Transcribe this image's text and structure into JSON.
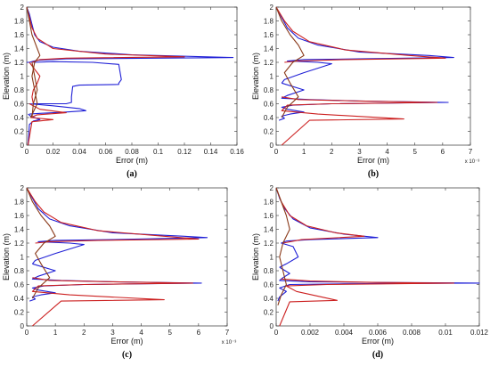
{
  "chart_data": [
    {
      "type": "line",
      "panel_label": "(a)",
      "xlabel": "Error (m)",
      "ylabel": "Elevation (m)",
      "xlim": [
        0,
        0.16
      ],
      "ylim": [
        0,
        2
      ],
      "xticks": [
        "0",
        "0.02",
        "0.04",
        "0.06",
        "0.08",
        "0.1",
        "0.12",
        "0.14",
        "0.16"
      ],
      "yticks": [
        "0",
        "0.2",
        "0.4",
        "0.6",
        "0.8",
        "1",
        "1.2",
        "1.4",
        "1.6",
        "1.8",
        "2"
      ],
      "exponent_label": "",
      "series": [
        {
          "color": "#1f1fd6",
          "x": [
            0,
            0.002,
            0.004,
            0.006,
            0.01,
            0.02,
            0.04,
            0.08,
            0.157,
            0.03,
            0.008,
            0.004,
            0.002,
            0
          ],
          "y": [
            2,
            1.9,
            1.75,
            1.6,
            1.5,
            1.42,
            1.36,
            1.31,
            1.27,
            1.25,
            1.23,
            1.21,
            1.2,
            1.2
          ]
        },
        {
          "color": "#1f1fd6",
          "x": [
            0.005,
            0.02,
            0.05,
            0.07,
            0.072,
            0.07,
            0.07,
            0.04,
            0.035,
            0.034,
            0.034,
            0.03,
            0.005
          ],
          "y": [
            1.2,
            1.21,
            1.2,
            1.17,
            0.95,
            0.9,
            0.88,
            0.87,
            0.85,
            0.7,
            0.62,
            0.6,
            0.6
          ]
        },
        {
          "color": "#1f1fd6",
          "x": [
            0.002,
            0.02,
            0.04,
            0.045,
            0.03,
            0.01,
            0.002
          ],
          "y": [
            0.6,
            0.57,
            0.53,
            0.5,
            0.48,
            0.46,
            0.45
          ]
        },
        {
          "color": "#1f1fd6",
          "x": [
            0.001,
            0.003,
            0.006,
            0.01,
            0.005,
            0.002,
            0.001
          ],
          "y": [
            0.45,
            0.42,
            0.4,
            0.37,
            0.35,
            0.3,
            0
          ]
        },
        {
          "color": "#cc2020",
          "x": [
            0,
            0.002,
            0.004,
            0.008,
            0.02,
            0.06,
            0.12,
            0.03,
            0.01,
            0.004
          ],
          "y": [
            2,
            1.85,
            1.7,
            1.55,
            1.4,
            1.32,
            1.28,
            1.26,
            1.24,
            1.2
          ]
        },
        {
          "color": "#cc2020",
          "x": [
            0.002,
            0.006,
            0.01,
            0.008,
            0.005,
            0.004,
            0.005
          ],
          "y": [
            1.2,
            1.1,
            1,
            0.9,
            0.8,
            0.7,
            0.6
          ]
        },
        {
          "color": "#cc2020",
          "x": [
            0.002,
            0.01,
            0.03,
            0.008,
            0.003,
            0.02,
            0.004,
            0.001
          ],
          "y": [
            0.6,
            0.52,
            0.47,
            0.44,
            0.4,
            0.37,
            0.34,
            0
          ]
        },
        {
          "color": "#8a3a1a",
          "x": [
            0,
            0.002,
            0.004,
            0.006,
            0.008,
            0.01,
            0.006,
            0.004,
            0.006,
            0.008,
            0.003
          ],
          "y": [
            2,
            1.8,
            1.6,
            1.5,
            1.4,
            1.3,
            1.2,
            1.0,
            0.8,
            0.6,
            0.4
          ]
        },
        {
          "color": "#8a3a1a",
          "x": [
            0.004,
            0.006,
            0.008,
            0.005,
            0.004
          ],
          "y": [
            1.2,
            1.0,
            0.8,
            0.6,
            0.4
          ]
        }
      ]
    },
    {
      "type": "line",
      "panel_label": "(b)",
      "xlabel": "Error (m)",
      "ylabel": "Elevation (m)",
      "xlim": [
        0,
        7
      ],
      "ylim": [
        0,
        2
      ],
      "xticks": [
        "0",
        "1",
        "2",
        "3",
        "4",
        "5",
        "6",
        "7"
      ],
      "yticks": [
        "0",
        "0.2",
        "0.4",
        "0.6",
        "0.8",
        "1",
        "1.2",
        "1.4",
        "1.6",
        "1.8",
        "2"
      ],
      "exponent_label": "x 10⁻³",
      "series": [
        {
          "color": "#1f1fd6",
          "x": [
            0,
            0.2,
            0.4,
            0.8,
            1.5,
            3,
            5.5,
            6.4,
            3,
            1,
            0.4,
            1.5,
            2,
            1,
            0.3,
            0.2
          ],
          "y": [
            2,
            1.85,
            1.7,
            1.55,
            1.45,
            1.35,
            1.3,
            1.27,
            1.25,
            1.24,
            1.22,
            1.2,
            1.18,
            1.05,
            0.95,
            0.9
          ]
        },
        {
          "color": "#1f1fd6",
          "x": [
            0.2,
            1,
            0.4,
            0.2,
            1.2,
            3,
            6.2,
            2,
            0.6,
            0.2,
            0.4,
            1,
            0.5,
            0.2,
            0.3,
            0.1
          ],
          "y": [
            0.9,
            0.8,
            0.72,
            0.68,
            0.66,
            0.64,
            0.62,
            0.6,
            0.58,
            0.55,
            0.52,
            0.48,
            0.45,
            0.42,
            0.39,
            0.36
          ]
        },
        {
          "color": "#cc2020",
          "x": [
            0,
            0.3,
            0.6,
            1.2,
            2.5,
            4.8,
            6.1,
            2.5,
            0.8,
            0.3
          ],
          "y": [
            2,
            1.8,
            1.65,
            1.5,
            1.38,
            1.3,
            1.26,
            1.24,
            1.22,
            1.2
          ]
        },
        {
          "color": "#cc2020",
          "x": [
            0.2,
            0.8,
            3,
            5.8,
            2,
            0.4,
            0.2,
            1.5,
            4.6,
            1.2,
            0.2
          ],
          "y": [
            0.7,
            0.66,
            0.64,
            0.62,
            0.6,
            0.58,
            0.5,
            0.45,
            0.38,
            0.36,
            0
          ]
        },
        {
          "color": "#8a3a1a",
          "x": [
            0,
            0.2,
            0.5,
            0.8,
            1,
            0.6,
            0.3,
            0.5,
            0.8,
            0.4,
            0.2
          ],
          "y": [
            2,
            1.8,
            1.6,
            1.45,
            1.3,
            1.2,
            1.05,
            0.9,
            0.7,
            0.55,
            0.4
          ]
        }
      ]
    },
    {
      "type": "line",
      "panel_label": "(c)",
      "xlabel": "Error (m)",
      "ylabel": "Elevation (m)",
      "xlim": [
        0,
        7
      ],
      "ylim": [
        0,
        2
      ],
      "xticks": [
        "0",
        "1",
        "2",
        "3",
        "4",
        "5",
        "6",
        "7"
      ],
      "yticks": [
        "0",
        "0.2",
        "0.4",
        "0.6",
        "0.8",
        "1",
        "1.2",
        "1.4",
        "1.6",
        "1.8",
        "2"
      ],
      "exponent_label": "x 10⁻³",
      "series": [
        {
          "color": "#1f1fd6",
          "x": [
            0,
            0.2,
            0.4,
            0.8,
            1.5,
            3,
            5.5,
            6.3,
            3,
            1,
            0.4,
            1.5,
            2,
            1,
            0.3,
            0.2
          ],
          "y": [
            2,
            1.85,
            1.7,
            1.55,
            1.45,
            1.35,
            1.3,
            1.28,
            1.25,
            1.24,
            1.22,
            1.2,
            1.18,
            1.05,
            0.95,
            0.9
          ]
        },
        {
          "color": "#1f1fd6",
          "x": [
            0.2,
            1,
            0.4,
            0.2,
            1.2,
            3,
            6.1,
            2,
            0.6,
            0.2,
            0.4,
            1,
            0.5,
            0.2,
            0.3,
            0.1
          ],
          "y": [
            0.9,
            0.8,
            0.72,
            0.68,
            0.66,
            0.64,
            0.62,
            0.6,
            0.58,
            0.55,
            0.52,
            0.48,
            0.45,
            0.42,
            0.39,
            0.36
          ]
        },
        {
          "color": "#cc2020",
          "x": [
            0,
            0.3,
            0.6,
            1.2,
            2.5,
            4.8,
            6.0,
            2.5,
            0.8,
            0.3
          ],
          "y": [
            2,
            1.8,
            1.65,
            1.5,
            1.38,
            1.3,
            1.26,
            1.24,
            1.22,
            1.2
          ]
        },
        {
          "color": "#cc2020",
          "x": [
            0.2,
            0.8,
            3,
            5.8,
            2,
            0.4,
            0.2,
            1.5,
            4.8,
            1.2,
            0.2
          ],
          "y": [
            0.7,
            0.66,
            0.64,
            0.62,
            0.6,
            0.58,
            0.5,
            0.45,
            0.38,
            0.36,
            0
          ]
        },
        {
          "color": "#8a3a1a",
          "x": [
            0,
            0.2,
            0.5,
            0.8,
            1,
            0.6,
            0.3,
            0.5,
            0.8,
            0.4,
            0.2
          ],
          "y": [
            2,
            1.8,
            1.6,
            1.45,
            1.3,
            1.2,
            1.05,
            0.9,
            0.7,
            0.55,
            0.4
          ]
        }
      ]
    },
    {
      "type": "line",
      "panel_label": "(d)",
      "xlabel": "Error (m)",
      "ylabel": "Elevation (m)",
      "xlim": [
        0,
        0.012
      ],
      "ylim": [
        0,
        2
      ],
      "xticks": [
        "0",
        "0.002",
        "0.004",
        "0.006",
        "0.008",
        "0.01",
        "0.012"
      ],
      "yticks": [
        "0",
        "0.2",
        "0.4",
        "0.6",
        "0.8",
        "1",
        "1.2",
        "1.4",
        "1.6",
        "1.8",
        "2"
      ],
      "exponent_label": "",
      "series": [
        {
          "color": "#1f1fd6",
          "x": [
            0,
            0.0002,
            0.0005,
            0.001,
            0.002,
            0.004,
            0.006,
            0.002,
            0.0006,
            0.0003,
            0.001,
            0.0013,
            0.0006,
            0.0002
          ],
          "y": [
            2,
            1.85,
            1.7,
            1.55,
            1.42,
            1.33,
            1.28,
            1.25,
            1.23,
            1.2,
            1.15,
            1.0,
            0.9,
            0.85
          ]
        },
        {
          "color": "#1f1fd6",
          "x": [
            0.0002,
            0.0008,
            0.0004,
            0.0002,
            0.002,
            0.006,
            0.012,
            0.004,
            0.0008,
            0.0002,
            0.0006,
            0.0002,
            0.0001
          ],
          "y": [
            0.85,
            0.76,
            0.7,
            0.66,
            0.64,
            0.63,
            0.62,
            0.61,
            0.6,
            0.55,
            0.5,
            0.42,
            0.36
          ]
        },
        {
          "color": "#cc2020",
          "x": [
            0,
            0.0003,
            0.0008,
            0.0018,
            0.0035,
            0.0052,
            0.0015,
            0.0004
          ],
          "y": [
            2,
            1.8,
            1.6,
            1.45,
            1.35,
            1.3,
            1.25,
            1.2
          ]
        },
        {
          "color": "#cc2020",
          "x": [
            0.0003,
            0.002,
            0.006,
            0.0105,
            0.003,
            0.0006,
            0.0012,
            0.0036,
            0.0008,
            0.0002
          ],
          "y": [
            0.68,
            0.65,
            0.63,
            0.62,
            0.6,
            0.58,
            0.5,
            0.37,
            0.35,
            0
          ]
        },
        {
          "color": "#8a3a1a",
          "x": [
            0,
            0.0003,
            0.0006,
            0.0008,
            0.0004,
            0.0002,
            0.0004,
            0.0006,
            0.0003,
            0.0001
          ],
          "y": [
            2,
            1.8,
            1.6,
            1.4,
            1.2,
            1.0,
            0.8,
            0.6,
            0.45,
            0.3
          ]
        }
      ]
    }
  ]
}
